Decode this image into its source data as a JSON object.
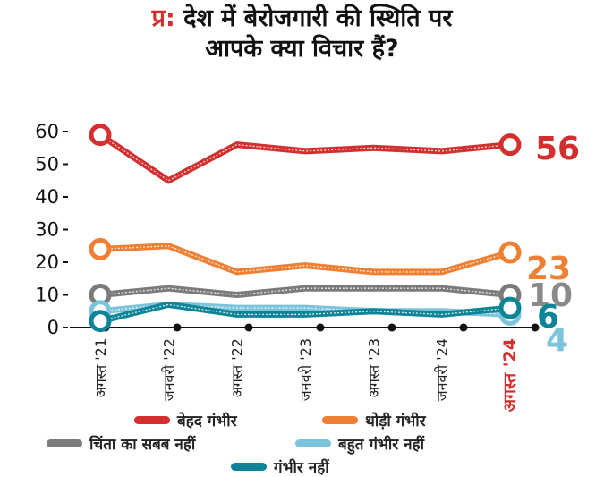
{
  "title": {
    "prefix": "प्र:",
    "line1": "देश में बेरोजगारी की स्थिति पर",
    "line2": "आपके क्या विचार हैं?"
  },
  "chart_data": {
    "type": "line",
    "categories": [
      "अगस्त '21",
      "जनवरी '22",
      "अगस्त '22",
      "जनवरी '23",
      "अगस्त '23",
      "जनवरी '24",
      "अगस्त '24"
    ],
    "highlight_category": "अगस्त '24",
    "yticks": [
      "0",
      "10",
      "20",
      "30",
      "40",
      "50",
      "60"
    ],
    "ylim": [
      0,
      60
    ],
    "grid": false,
    "series": [
      {
        "name": "बेहद गंभीर",
        "color": "#d32f2f",
        "values": [
          59,
          45,
          56,
          54,
          55,
          54,
          56
        ],
        "end_label": "56",
        "end_label_color": "#d32f2f"
      },
      {
        "name": "थोड़ी गंभीर",
        "color": "#ef7f33",
        "values": [
          24,
          25,
          17,
          19,
          17,
          17,
          23
        ],
        "end_label": "23",
        "end_label_color": "#ef7f33"
      },
      {
        "name": "चिंता का सबब नहीं",
        "color": "#7b7b7b",
        "values": [
          10,
          12,
          10,
          12,
          12,
          12,
          10
        ],
        "end_label": "10",
        "end_label_color": "#8a8a8a"
      },
      {
        "name": "बहुत गंभीर नहीं",
        "color": "#7cc3dc",
        "values": [
          5,
          7,
          6,
          6,
          5,
          5,
          4
        ],
        "end_label": "4",
        "end_label_color": "#7cc3dc"
      },
      {
        "name": "गंभीर नहीं",
        "color": "#0e8497",
        "values": [
          2,
          7,
          4,
          4,
          5,
          4,
          6
        ],
        "end_label": "6",
        "end_label_color": "#0e8497"
      }
    ],
    "legend": {
      "placement": "bottom"
    }
  }
}
